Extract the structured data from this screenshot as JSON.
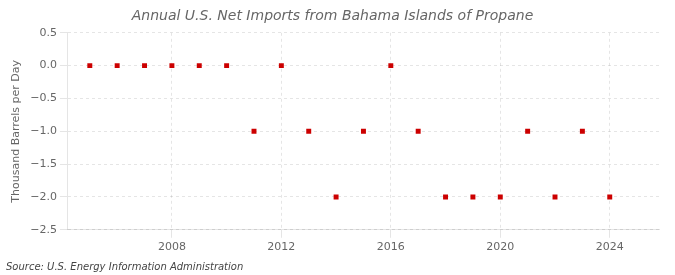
{
  "chart_data": {
    "type": "scatter",
    "title": "Annual U.S. Net Imports from Bahama Islands of Propane",
    "ylabel": "Thousand Barrels per Day",
    "annotations": [
      "Source: U.S. Energy Information Administration"
    ],
    "x": [
      2005,
      2006,
      2007,
      2008,
      2009,
      2010,
      2011,
      2012,
      2013,
      2014,
      2015,
      2016,
      2017,
      2018,
      2019,
      2020,
      2021,
      2022,
      2023,
      2024
    ],
    "values": [
      0,
      0,
      0,
      0,
      0,
      0,
      -1,
      0,
      -1,
      -2,
      -1,
      0,
      -1,
      -2,
      -2,
      -2,
      -1,
      -2,
      -1,
      -2
    ],
    "color": "#cc0000",
    "marker": "square",
    "xlim": [
      2004.2,
      2025.8
    ],
    "xticks": [
      2008,
      2012,
      2016,
      2020,
      2024
    ],
    "ylim": [
      -2.5,
      0.5
    ],
    "yticks": [
      0.5,
      {
        "value": 0,
        "label": "0.0"
      },
      {
        "value": -0.5,
        "label": "−0.5"
      },
      {
        "value": -1,
        "label": "−1.0"
      },
      {
        "value": -1.5,
        "label": "−1.5"
      },
      {
        "value": -2,
        "label": "−2.0"
      },
      {
        "value": -2.5,
        "label": "−2.5"
      }
    ],
    "grid": true
  }
}
